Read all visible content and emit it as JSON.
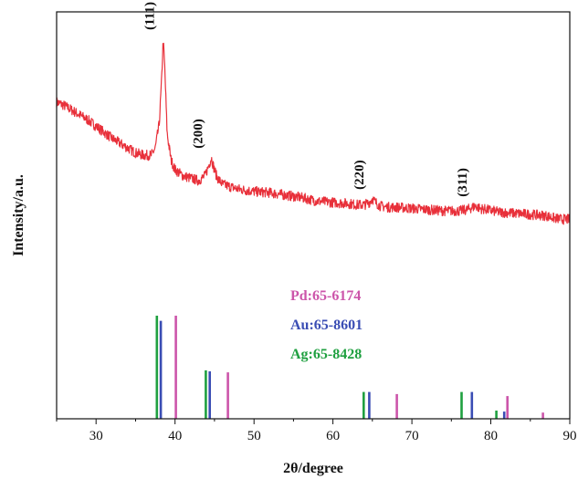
{
  "chart_data": {
    "type": "line",
    "title": "",
    "xlabel": "2θ/degree",
    "ylabel": "Intensity/a.u.",
    "xlim": [
      25,
      90
    ],
    "x_ticks": [
      30,
      40,
      50,
      60,
      70,
      80,
      90
    ],
    "y_ticks_shown": false,
    "grid": false,
    "pattern": {
      "color": "#e8303a",
      "x": [
        25,
        26,
        27,
        28,
        29,
        30,
        31,
        32,
        33,
        34,
        35,
        36,
        37,
        37.5,
        38,
        38.3,
        38.5,
        38.7,
        39,
        39.5,
        40,
        41,
        42,
        43,
        43.8,
        44.3,
        44.6,
        44.9,
        45.3,
        46,
        47,
        48,
        50,
        52,
        54,
        56,
        58,
        60,
        62,
        63,
        64,
        64.6,
        65,
        65.4,
        66,
        67,
        68,
        70,
        72,
        74,
        76,
        77,
        77.7,
        78.1,
        78.6,
        79.5,
        81,
        83,
        85,
        87,
        88,
        89,
        90
      ],
      "y": [
        71,
        69.5,
        67.5,
        65.5,
        63.5,
        61,
        58.5,
        56,
        54,
        52,
        50,
        49,
        49,
        52,
        62,
        80,
        97,
        85,
        58,
        47,
        43,
        40.5,
        39.5,
        38.5,
        40.5,
        45,
        48,
        44,
        40,
        37,
        36,
        35,
        34,
        33.5,
        32.5,
        31.5,
        30,
        29.5,
        29,
        28.5,
        28.5,
        29.5,
        31,
        29.5,
        28,
        27.5,
        27.5,
        27,
        26.5,
        26,
        26,
        26.5,
        27.5,
        28,
        27,
        26.5,
        25.5,
        25,
        24.5,
        24,
        23,
        22.5,
        22.5
      ]
    },
    "peak_labels": [
      {
        "text": "(111)",
        "x": 38.5,
        "y": 97
      },
      {
        "text": "(200)",
        "x": 44.6,
        "y": 48
      },
      {
        "text": "(220)",
        "x": 65,
        "y": 31
      },
      {
        "text": "(311)",
        "x": 78.1,
        "y": 28
      }
    ],
    "reference_series": [
      {
        "name": "Pd:65-6174",
        "color": "#cc55aa",
        "x": [
          40.1,
          46.7,
          68.1,
          82.1,
          86.6
        ],
        "values": [
          100,
          45,
          24,
          22,
          6
        ]
      },
      {
        "name": "Au:65-8601",
        "color": "#3a4db4",
        "x": [
          38.2,
          44.4,
          64.6,
          77.6,
          81.7
        ],
        "values": [
          95,
          46,
          26,
          26,
          7
        ]
      },
      {
        "name": "Ag:65-8428",
        "color": "#1fa040",
        "x": [
          37.7,
          43.9,
          63.9,
          76.3,
          80.7
        ],
        "values": [
          100,
          47,
          26,
          26,
          8
        ]
      }
    ]
  }
}
